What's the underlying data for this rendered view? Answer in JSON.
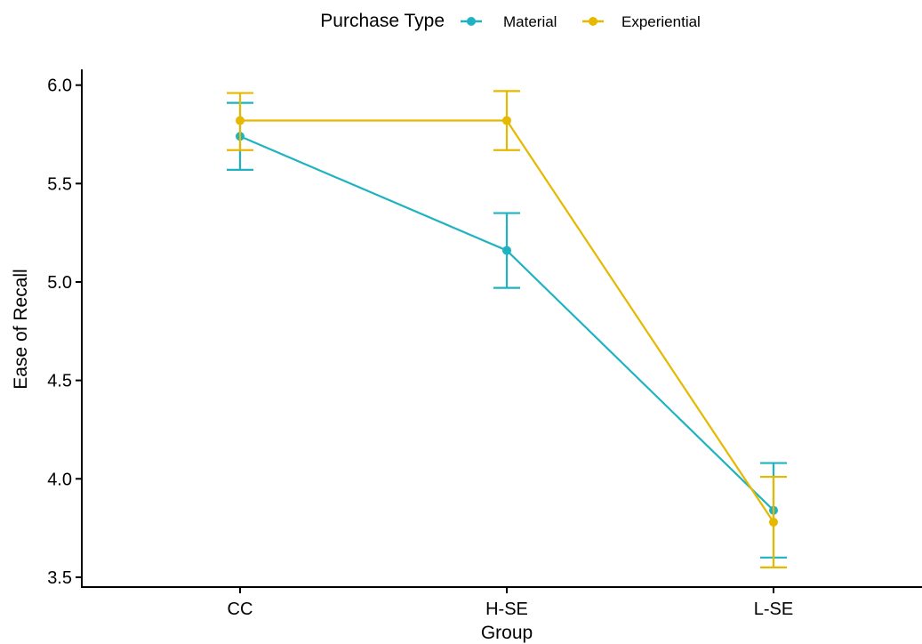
{
  "legend": {
    "title": "Purchase Type",
    "items": [
      {
        "label": "Material",
        "color": "#1fb3c2"
      },
      {
        "label": "Experiential",
        "color": "#e6b800"
      }
    ]
  },
  "chart_data": {
    "type": "line",
    "categories": [
      "CC",
      "H-SE",
      "L-SE"
    ],
    "xlabel": "Group",
    "ylabel": "Ease of Recall",
    "ylim": [
      3.45,
      6.08
    ],
    "yticks": [
      "3.5",
      "4.0",
      "4.5",
      "5.0",
      "5.5",
      "6.0"
    ],
    "grid": false,
    "legend_position": "top",
    "series": [
      {
        "name": "Material",
        "color": "#1fb3c2",
        "values": [
          5.74,
          5.16,
          3.84
        ],
        "error_low": [
          5.57,
          4.97,
          3.6
        ],
        "error_high": [
          5.91,
          5.35,
          4.08
        ]
      },
      {
        "name": "Experiential",
        "color": "#e6b800",
        "values": [
          5.82,
          5.82,
          3.78
        ],
        "error_low": [
          5.67,
          5.67,
          3.55
        ],
        "error_high": [
          5.96,
          5.97,
          4.01
        ]
      }
    ]
  }
}
